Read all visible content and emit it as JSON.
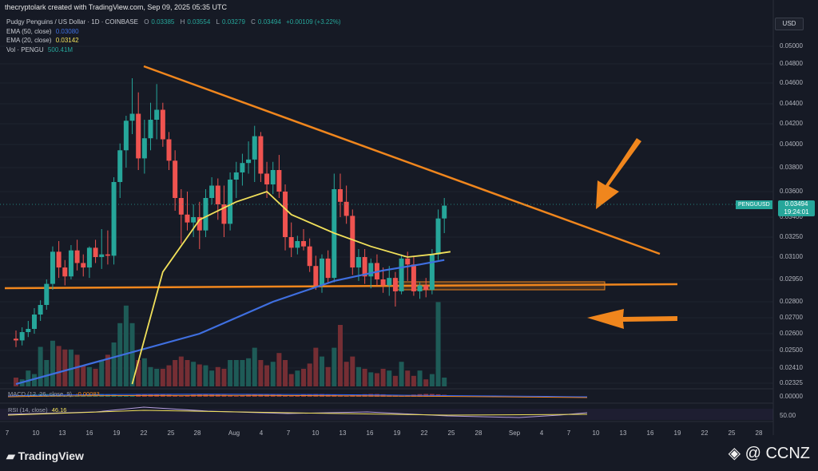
{
  "header": {
    "author_line": "thecryptolark created with TradingView.com, Sep 09, 2025 05:35 UTC"
  },
  "legend": {
    "symbol": "Pudgy Penguins / US Dollar · 1D · COINBASE",
    "ohlc": [
      {
        "k": "O",
        "v": "0.03385"
      },
      {
        "k": "H",
        "v": "0.03554"
      },
      {
        "k": "L",
        "v": "0.03279"
      },
      {
        "k": "C",
        "v": "0.03494"
      }
    ],
    "change": "+0.00109 (+3.22%)",
    "ema50_label": "EMA (50, close)",
    "ema50_value": "0.03080",
    "ema20_label": "EMA (20, close)",
    "ema20_value": "0.03142",
    "vol_label": "Vol · PENGU",
    "vol_value": "500.41M",
    "macd_label": "MACD (12, 26, close, 9)",
    "macd_value": "-0.00083",
    "rsi_label": "RSI (14, close)",
    "rsi_value": "46.16"
  },
  "currency_button": "USD",
  "price_axis": {
    "ticks": [
      "0.05000",
      "0.04800",
      "0.04600",
      "0.04400",
      "0.04200",
      "0.04000",
      "0.03800",
      "0.03600",
      "0.03400",
      "0.03250",
      "0.03100",
      "0.02950",
      "0.02800",
      "0.02700",
      "0.02600",
      "0.02500",
      "0.02410",
      "0.02325"
    ],
    "macd_tick": "0.00000",
    "rsi_tick": "50.00"
  },
  "price_badge": {
    "price": "0.03494",
    "countdown": "19:24:01",
    "pair": "PENGUUSD"
  },
  "time_axis": [
    "7",
    "10",
    "13",
    "16",
    "19",
    "22",
    "25",
    "28",
    "Aug",
    "4",
    "7",
    "10",
    "13",
    "16",
    "19",
    "22",
    "25",
    "28",
    "Sep",
    "4",
    "7",
    "10",
    "13",
    "16",
    "19",
    "22",
    "25",
    "28"
  ],
  "colors": {
    "up": "#26a69a",
    "down": "#ef5350",
    "ema50": "#3f6fe0",
    "ema20": "#f1e05a",
    "trendline": "#f0861d",
    "support_zone": "#f0861d",
    "arrow": "#f0861d",
    "background": "#161a25"
  },
  "chart_data": {
    "type": "candlestick",
    "title": "Pudgy Penguins / US Dollar · 1D · COINBASE",
    "timeframe": "1D",
    "x_range": [
      "2025-07-07",
      "2025-09-28"
    ],
    "ylim": [
      0.0232,
      0.0505
    ],
    "y_scale": "log",
    "candles": [
      {
        "o": 0.0257,
        "h": 0.0262,
        "l": 0.0252,
        "c": 0.0256
      },
      {
        "o": 0.0256,
        "h": 0.0264,
        "l": 0.0253,
        "c": 0.0261
      },
      {
        "o": 0.0261,
        "h": 0.0268,
        "l": 0.0258,
        "c": 0.0263
      },
      {
        "o": 0.0263,
        "h": 0.0276,
        "l": 0.026,
        "c": 0.0272
      },
      {
        "o": 0.0272,
        "h": 0.0281,
        "l": 0.0268,
        "c": 0.0278
      },
      {
        "o": 0.0278,
        "h": 0.0295,
        "l": 0.0275,
        "c": 0.0292
      },
      {
        "o": 0.0292,
        "h": 0.0318,
        "l": 0.0288,
        "c": 0.0314
      },
      {
        "o": 0.0314,
        "h": 0.0322,
        "l": 0.0296,
        "c": 0.0303
      },
      {
        "o": 0.0303,
        "h": 0.0308,
        "l": 0.0291,
        "c": 0.0297
      },
      {
        "o": 0.0297,
        "h": 0.0319,
        "l": 0.0295,
        "c": 0.0315
      },
      {
        "o": 0.0315,
        "h": 0.0323,
        "l": 0.0301,
        "c": 0.0306
      },
      {
        "o": 0.0306,
        "h": 0.0312,
        "l": 0.0297,
        "c": 0.0303
      },
      {
        "o": 0.0303,
        "h": 0.0318,
        "l": 0.0296,
        "c": 0.0317
      },
      {
        "o": 0.0317,
        "h": 0.0323,
        "l": 0.0306,
        "c": 0.031
      },
      {
        "o": 0.031,
        "h": 0.0331,
        "l": 0.0302,
        "c": 0.0312
      },
      {
        "o": 0.0312,
        "h": 0.033,
        "l": 0.0305,
        "c": 0.0311
      },
      {
        "o": 0.0311,
        "h": 0.0372,
        "l": 0.0305,
        "c": 0.0368
      },
      {
        "o": 0.0368,
        "h": 0.0401,
        "l": 0.0355,
        "c": 0.0395
      },
      {
        "o": 0.0395,
        "h": 0.0428,
        "l": 0.038,
        "c": 0.0423
      },
      {
        "o": 0.0423,
        "h": 0.0465,
        "l": 0.041,
        "c": 0.043
      },
      {
        "o": 0.043,
        "h": 0.0451,
        "l": 0.0378,
        "c": 0.0388
      },
      {
        "o": 0.0388,
        "h": 0.0424,
        "l": 0.0375,
        "c": 0.0406
      },
      {
        "o": 0.0406,
        "h": 0.0441,
        "l": 0.0395,
        "c": 0.0424
      },
      {
        "o": 0.0424,
        "h": 0.0459,
        "l": 0.0405,
        "c": 0.0434
      },
      {
        "o": 0.0434,
        "h": 0.0441,
        "l": 0.0398,
        "c": 0.0405
      },
      {
        "o": 0.0405,
        "h": 0.0412,
        "l": 0.0378,
        "c": 0.0386
      },
      {
        "o": 0.0386,
        "h": 0.0395,
        "l": 0.0345,
        "c": 0.0355
      },
      {
        "o": 0.0355,
        "h": 0.0362,
        "l": 0.032,
        "c": 0.0342
      },
      {
        "o": 0.0342,
        "h": 0.036,
        "l": 0.033,
        "c": 0.0336
      },
      {
        "o": 0.0336,
        "h": 0.035,
        "l": 0.0325,
        "c": 0.034
      },
      {
        "o": 0.034,
        "h": 0.0352,
        "l": 0.0316,
        "c": 0.033
      },
      {
        "o": 0.033,
        "h": 0.0362,
        "l": 0.0325,
        "c": 0.0355
      },
      {
        "o": 0.0355,
        "h": 0.0372,
        "l": 0.035,
        "c": 0.0365
      },
      {
        "o": 0.0365,
        "h": 0.0371,
        "l": 0.0338,
        "c": 0.035
      },
      {
        "o": 0.035,
        "h": 0.0365,
        "l": 0.0325,
        "c": 0.0335
      },
      {
        "o": 0.0335,
        "h": 0.0376,
        "l": 0.033,
        "c": 0.037
      },
      {
        "o": 0.037,
        "h": 0.0385,
        "l": 0.0355,
        "c": 0.0376
      },
      {
        "o": 0.0376,
        "h": 0.0392,
        "l": 0.0365,
        "c": 0.0384
      },
      {
        "o": 0.0384,
        "h": 0.0403,
        "l": 0.0375,
        "c": 0.0387
      },
      {
        "o": 0.0387,
        "h": 0.0418,
        "l": 0.0368,
        "c": 0.0408
      },
      {
        "o": 0.0408,
        "h": 0.0412,
        "l": 0.0368,
        "c": 0.0375
      },
      {
        "o": 0.0375,
        "h": 0.0385,
        "l": 0.0355,
        "c": 0.0366
      },
      {
        "o": 0.0366,
        "h": 0.0385,
        "l": 0.0358,
        "c": 0.0378
      },
      {
        "o": 0.0378,
        "h": 0.0391,
        "l": 0.0355,
        "c": 0.036
      },
      {
        "o": 0.036,
        "h": 0.0366,
        "l": 0.0315,
        "c": 0.0325
      },
      {
        "o": 0.0325,
        "h": 0.0336,
        "l": 0.031,
        "c": 0.0317
      },
      {
        "o": 0.0317,
        "h": 0.0326,
        "l": 0.0312,
        "c": 0.0322
      },
      {
        "o": 0.0322,
        "h": 0.0331,
        "l": 0.0315,
        "c": 0.0318
      },
      {
        "o": 0.0318,
        "h": 0.0324,
        "l": 0.03,
        "c": 0.0304
      },
      {
        "o": 0.0304,
        "h": 0.0311,
        "l": 0.0288,
        "c": 0.0291
      },
      {
        "o": 0.0291,
        "h": 0.0312,
        "l": 0.0286,
        "c": 0.0309
      },
      {
        "o": 0.0309,
        "h": 0.0315,
        "l": 0.0292,
        "c": 0.0296
      },
      {
        "o": 0.0296,
        "h": 0.0375,
        "l": 0.0293,
        "c": 0.0362
      },
      {
        "o": 0.0362,
        "h": 0.0375,
        "l": 0.034,
        "c": 0.0352
      },
      {
        "o": 0.0352,
        "h": 0.0365,
        "l": 0.0335,
        "c": 0.0341
      },
      {
        "o": 0.0341,
        "h": 0.0346,
        "l": 0.0298,
        "c": 0.0303
      },
      {
        "o": 0.0303,
        "h": 0.0316,
        "l": 0.0294,
        "c": 0.031
      },
      {
        "o": 0.031,
        "h": 0.0316,
        "l": 0.0292,
        "c": 0.0297
      },
      {
        "o": 0.0297,
        "h": 0.0309,
        "l": 0.0289,
        "c": 0.0306
      },
      {
        "o": 0.0306,
        "h": 0.0312,
        "l": 0.0291,
        "c": 0.0295
      },
      {
        "o": 0.0295,
        "h": 0.0303,
        "l": 0.0286,
        "c": 0.0291
      },
      {
        "o": 0.0291,
        "h": 0.0304,
        "l": 0.0284,
        "c": 0.0296
      },
      {
        "o": 0.0296,
        "h": 0.03,
        "l": 0.0277,
        "c": 0.0287
      },
      {
        "o": 0.0287,
        "h": 0.0312,
        "l": 0.0285,
        "c": 0.0309
      },
      {
        "o": 0.0309,
        "h": 0.0314,
        "l": 0.0294,
        "c": 0.0305
      },
      {
        "o": 0.0305,
        "h": 0.031,
        "l": 0.0284,
        "c": 0.0287
      },
      {
        "o": 0.0287,
        "h": 0.0293,
        "l": 0.0282,
        "c": 0.0291
      },
      {
        "o": 0.0291,
        "h": 0.0296,
        "l": 0.0283,
        "c": 0.0288
      },
      {
        "o": 0.0288,
        "h": 0.0316,
        "l": 0.0285,
        "c": 0.0312
      },
      {
        "o": 0.0312,
        "h": 0.0346,
        "l": 0.0308,
        "c": 0.0339
      },
      {
        "o": 0.0339,
        "h": 0.0355,
        "l": 0.0328,
        "c": 0.0349
      }
    ],
    "volume": [
      0.1,
      0.08,
      0.18,
      0.14,
      0.45,
      0.3,
      0.52,
      0.46,
      0.42,
      0.42,
      0.36,
      0.24,
      0.22,
      0.2,
      0.3,
      0.36,
      0.5,
      0.72,
      0.92,
      0.72,
      0.3,
      0.32,
      0.22,
      0.2,
      0.2,
      0.24,
      0.3,
      0.34,
      0.3,
      0.28,
      0.25,
      0.24,
      0.18,
      0.22,
      0.2,
      0.3,
      0.3,
      0.3,
      0.32,
      0.44,
      0.3,
      0.24,
      0.28,
      0.38,
      0.3,
      0.14,
      0.18,
      0.2,
      0.26,
      0.44,
      0.34,
      0.22,
      0.44,
      0.7,
      0.28,
      0.34,
      0.22,
      0.2,
      0.16,
      0.15,
      0.2,
      0.18,
      0.12,
      0.28,
      0.18,
      0.12,
      0.18,
      0.08,
      0.14,
      0.96,
      0.1
    ],
    "ema50": [
      [
        0,
        0.0232
      ],
      [
        30,
        0.026
      ],
      [
        42,
        0.028
      ],
      [
        52,
        0.0294
      ],
      [
        60,
        0.0301
      ],
      [
        66,
        0.0305
      ],
      [
        70,
        0.0308
      ]
    ],
    "ema20": [
      [
        19,
        0.0232
      ],
      [
        24,
        0.03
      ],
      [
        30,
        0.0338
      ],
      [
        36,
        0.0352
      ],
      [
        41,
        0.036
      ],
      [
        45,
        0.0342
      ],
      [
        52,
        0.0328
      ],
      [
        58,
        0.0318
      ],
      [
        64,
        0.031
      ],
      [
        68,
        0.0312
      ],
      [
        71,
        0.0314
      ]
    ]
  }
}
